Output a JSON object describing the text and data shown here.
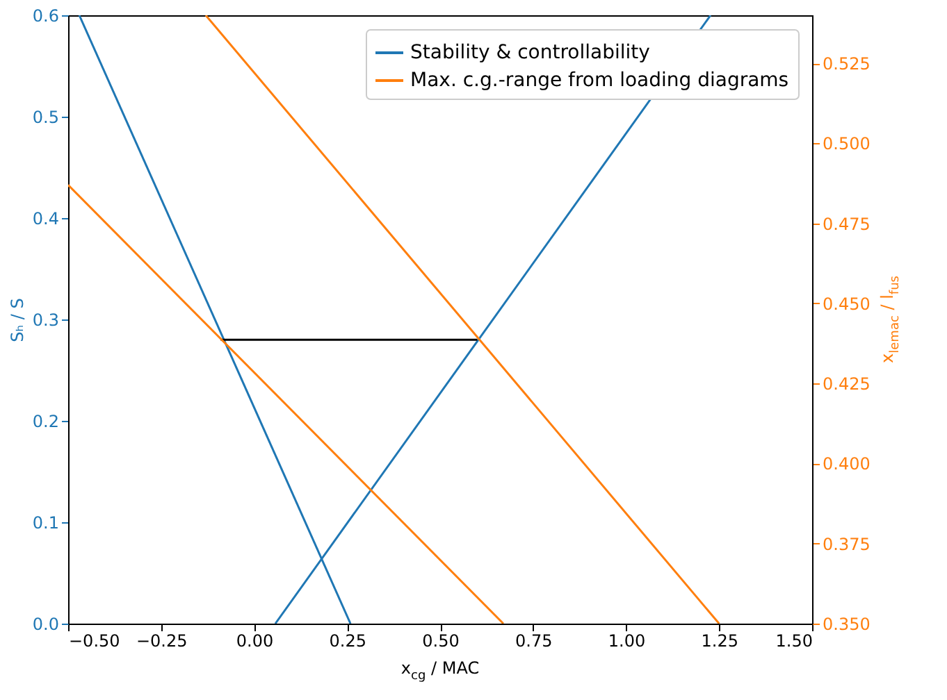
{
  "chart_data": {
    "type": "line",
    "xlabel": "x$_{cg}$ / MAC",
    "ylabel": "Sₕ / S",
    "y2label": "x$_{lemac}$ / l$_{fus}$",
    "series": [
      {
        "name": "Stability & controllability",
        "color": "#1f77b4",
        "x": [
          -0.47,
          0.259
        ],
        "values": [
          0.6,
          0
        ]
      },
      {
        "color": "#1f77b4",
        "x": [
          0.057,
          1.227
        ],
        "values": [
          0,
          0.6
        ]
      },
      {
        "name": "Max. c.g.-range from loading diagrams",
        "color": "#ff7f0e",
        "axis": "y2",
        "x": [
          -0.5,
          0.67
        ],
        "values": [
          0.487,
          0.35
        ]
      },
      {
        "color": "#ff7f0e",
        "axis": "y2",
        "x": [
          -0.13,
          1.25
        ],
        "values": [
          0.54,
          0.35
        ]
      },
      {
        "color": "#000000",
        "x": [
          -0.09,
          0.6
        ],
        "values": [
          0.28,
          0.28
        ]
      }
    ],
    "xlim": [
      -0.5,
      1.5
    ],
    "xticks": [
      {
        "value": -0.5,
        "label": "−0.50"
      },
      {
        "value": -0.25,
        "label": "−0.25"
      },
      {
        "value": 0,
        "label": "0.00"
      },
      0.25,
      {
        "value": 0.5,
        "label": "0.50"
      },
      0.75,
      {
        "value": 1,
        "label": "1.00"
      },
      1.25,
      {
        "value": 1.5,
        "label": "1.50"
      }
    ],
    "ylim": [
      0,
      0.6
    ],
    "yticks": [
      {
        "value": 0,
        "label": "0.0"
      },
      0.1,
      0.2,
      0.3,
      0.4,
      0.5,
      0.6
    ],
    "y2lim": [
      0.35,
      0.54
    ],
    "y2ticks": [
      {
        "value": 0.35,
        "label": "0.350"
      },
      0.375,
      {
        "value": 0.4,
        "label": "0.400"
      },
      0.425,
      {
        "value": 0.45,
        "label": "0.450"
      },
      0.475,
      {
        "value": 0.5,
        "label": "0.500"
      },
      0.525
    ],
    "grid": false,
    "legend": "top right"
  }
}
